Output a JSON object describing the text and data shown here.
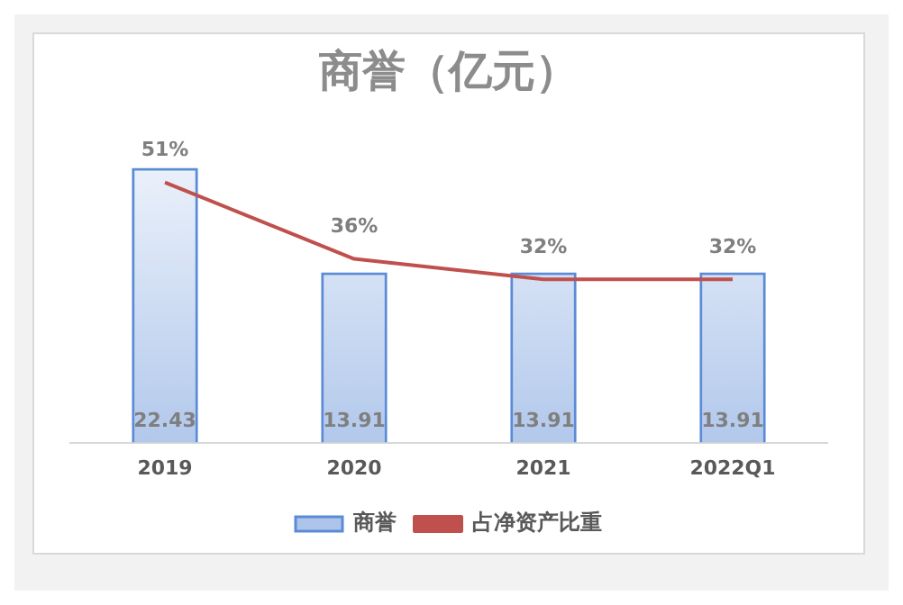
{
  "chart_data": {
    "type": "bar",
    "title": "商誉（亿元）",
    "categories": [
      "2019",
      "2020",
      "2021",
      "2022Q1"
    ],
    "series": [
      {
        "name": "商誉",
        "color": "#5b8bd6",
        "values": [
          22.43,
          13.91,
          13.91,
          13.91
        ],
        "value_labels": [
          "22.43",
          "13.91",
          "13.91",
          "13.91"
        ]
      },
      {
        "name": "占净资产比重",
        "type": "line",
        "axis": "y2",
        "color": "#c0504d",
        "values": [
          51,
          36,
          32,
          32
        ],
        "value_labels": [
          "51%",
          "36%",
          "32%",
          "32%"
        ]
      }
    ],
    "tick_labels": "x",
    "grid": false,
    "legend": "bottom",
    "marker": "none"
  }
}
